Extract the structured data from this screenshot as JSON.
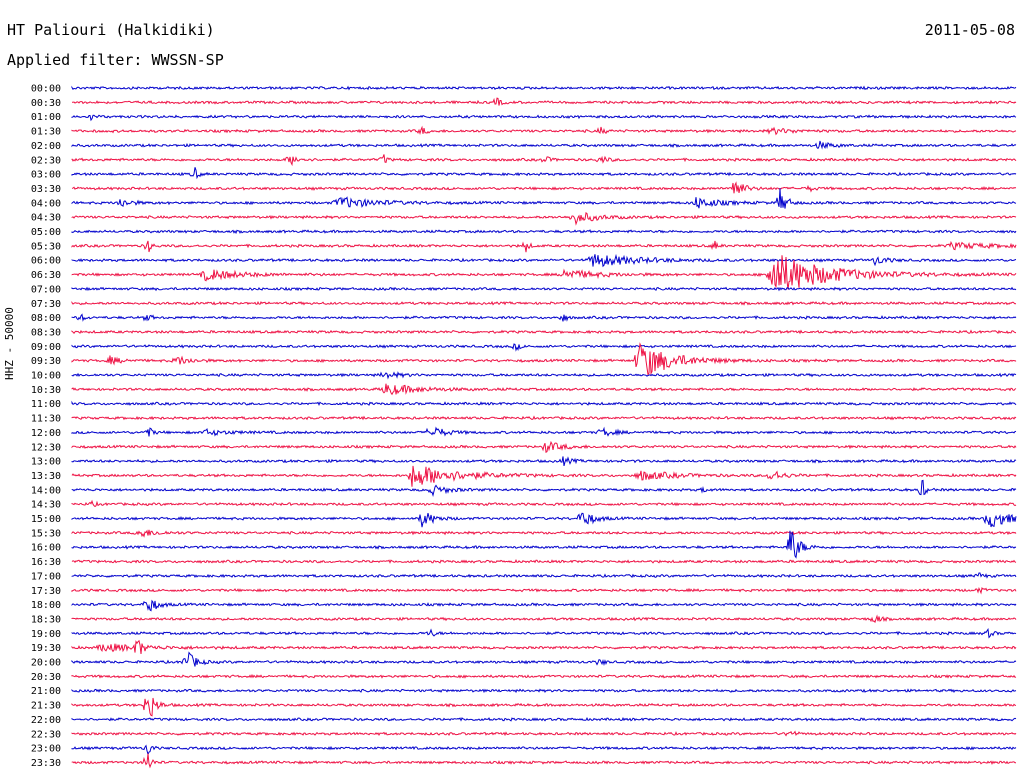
{
  "header": {
    "station": "HT Paliouri (Halkidiki)",
    "date": "2011-05-08",
    "filter_label": "Applied filter: WWSSN-SP"
  },
  "chart_data": {
    "type": "line",
    "ylabel": "HHZ - 50000",
    "colors": [
      "#0000cc",
      "#ee1144"
    ],
    "rows": [
      {
        "time": "00:00",
        "color": "#0000cc",
        "events": []
      },
      {
        "time": "00:30",
        "color": "#ee1144",
        "events": [
          {
            "t": 0.45,
            "a": 5,
            "w": 0.004
          }
        ]
      },
      {
        "time": "01:00",
        "color": "#0000cc",
        "events": [
          {
            "t": 0.02,
            "a": 3,
            "w": 0.004
          }
        ]
      },
      {
        "time": "01:30",
        "color": "#ee1144",
        "events": [
          {
            "t": 0.37,
            "a": 5,
            "w": 0.004
          },
          {
            "t": 0.56,
            "a": 4,
            "w": 0.004
          },
          {
            "t": 0.74,
            "a": 3,
            "w": 0.02
          }
        ]
      },
      {
        "time": "02:00",
        "color": "#0000cc",
        "events": [
          {
            "t": 0.79,
            "a": 4,
            "w": 0.012
          }
        ]
      },
      {
        "time": "02:30",
        "color": "#ee1144",
        "events": [
          {
            "t": 0.23,
            "a": 6,
            "w": 0.008
          },
          {
            "t": 0.33,
            "a": 6,
            "w": 0.003
          },
          {
            "t": 0.5,
            "a": 4,
            "w": 0.005
          },
          {
            "t": 0.56,
            "a": 4,
            "w": 0.006
          }
        ]
      },
      {
        "time": "03:00",
        "color": "#0000cc",
        "events": [
          {
            "t": 0.13,
            "a": 7,
            "w": 0.003
          }
        ]
      },
      {
        "time": "03:30",
        "color": "#ee1144",
        "events": [
          {
            "t": 0.7,
            "a": 13,
            "w": 0.008
          },
          {
            "t": 0.78,
            "a": 4,
            "w": 0.004
          }
        ]
      },
      {
        "time": "04:00",
        "color": "#0000cc",
        "events": [
          {
            "t": 0.05,
            "a": 5,
            "w": 0.01
          },
          {
            "t": 0.28,
            "a": 6,
            "w": 0.035
          },
          {
            "t": 0.66,
            "a": 6,
            "w": 0.02
          },
          {
            "t": 0.75,
            "a": 14,
            "w": 0.006
          }
        ]
      },
      {
        "time": "04:30",
        "color": "#ee1144",
        "events": [
          {
            "t": 0.53,
            "a": 7,
            "w": 0.02
          }
        ]
      },
      {
        "time": "05:00",
        "color": "#0000cc",
        "events": []
      },
      {
        "time": "05:30",
        "color": "#ee1144",
        "events": [
          {
            "t": 0.08,
            "a": 9,
            "w": 0.003
          },
          {
            "t": 0.48,
            "a": 8,
            "w": 0.003
          },
          {
            "t": 0.68,
            "a": 6,
            "w": 0.003
          },
          {
            "t": 0.93,
            "a": 3,
            "w": 0.04
          }
        ]
      },
      {
        "time": "06:00",
        "color": "#0000cc",
        "events": [
          {
            "t": 0.55,
            "a": 7,
            "w": 0.04
          },
          {
            "t": 0.85,
            "a": 5,
            "w": 0.01
          }
        ]
      },
      {
        "time": "06:30",
        "color": "#ee1144",
        "events": [
          {
            "t": 0.14,
            "a": 6,
            "w": 0.03
          },
          {
            "t": 0.52,
            "a": 5,
            "w": 0.03
          },
          {
            "t": 0.74,
            "a": 24,
            "w": 0.05
          }
        ]
      },
      {
        "time": "07:00",
        "color": "#0000cc",
        "events": []
      },
      {
        "time": "07:30",
        "color": "#ee1144",
        "events": []
      },
      {
        "time": "08:00",
        "color": "#0000cc",
        "events": [
          {
            "t": 0.01,
            "a": 4,
            "w": 0.003
          },
          {
            "t": 0.08,
            "a": 5,
            "w": 0.003
          },
          {
            "t": 0.52,
            "a": 6,
            "w": 0.003
          }
        ]
      },
      {
        "time": "08:30",
        "color": "#ee1144",
        "events": []
      },
      {
        "time": "09:00",
        "color": "#0000cc",
        "events": [
          {
            "t": 0.47,
            "a": 5,
            "w": 0.003
          }
        ]
      },
      {
        "time": "09:30",
        "color": "#ee1144",
        "events": [
          {
            "t": 0.04,
            "a": 4,
            "w": 0.01
          },
          {
            "t": 0.11,
            "a": 5,
            "w": 0.012
          },
          {
            "t": 0.6,
            "a": 20,
            "w": 0.03
          }
        ]
      },
      {
        "time": "10:00",
        "color": "#0000cc",
        "events": [
          {
            "t": 0.33,
            "a": 4,
            "w": 0.012
          }
        ]
      },
      {
        "time": "10:30",
        "color": "#ee1144",
        "events": [
          {
            "t": 0.33,
            "a": 6,
            "w": 0.03
          }
        ]
      },
      {
        "time": "11:00",
        "color": "#0000cc",
        "events": []
      },
      {
        "time": "11:30",
        "color": "#ee1144",
        "events": []
      },
      {
        "time": "12:00",
        "color": "#0000cc",
        "events": [
          {
            "t": 0.08,
            "a": 7,
            "w": 0.004
          },
          {
            "t": 0.14,
            "a": 3,
            "w": 0.02
          },
          {
            "t": 0.38,
            "a": 7,
            "w": 0.012
          },
          {
            "t": 0.56,
            "a": 5,
            "w": 0.01
          }
        ]
      },
      {
        "time": "12:30",
        "color": "#ee1144",
        "events": [
          {
            "t": 0.5,
            "a": 6,
            "w": 0.015
          }
        ]
      },
      {
        "time": "13:00",
        "color": "#0000cc",
        "events": [
          {
            "t": 0.52,
            "a": 4,
            "w": 0.008
          }
        ]
      },
      {
        "time": "13:30",
        "color": "#ee1144",
        "events": [
          {
            "t": 0.36,
            "a": 12,
            "w": 0.04
          },
          {
            "t": 0.6,
            "a": 5,
            "w": 0.03
          },
          {
            "t": 0.74,
            "a": 7,
            "w": 0.01
          }
        ]
      },
      {
        "time": "14:00",
        "color": "#0000cc",
        "events": [
          {
            "t": 0.38,
            "a": 5,
            "w": 0.015
          },
          {
            "t": 0.67,
            "a": 4,
            "w": 0.003
          },
          {
            "t": 0.9,
            "a": 14,
            "w": 0.003
          }
        ]
      },
      {
        "time": "14:30",
        "color": "#ee1144",
        "events": [
          {
            "t": 0.02,
            "a": 3,
            "w": 0.004
          }
        ]
      },
      {
        "time": "15:00",
        "color": "#0000cc",
        "events": [
          {
            "t": 0.37,
            "a": 10,
            "w": 0.01
          },
          {
            "t": 0.54,
            "a": 10,
            "w": 0.01
          },
          {
            "t": 0.97,
            "a": 10,
            "w": 0.02
          }
        ]
      },
      {
        "time": "15:30",
        "color": "#ee1144",
        "events": [
          {
            "t": 0.07,
            "a": 5,
            "w": 0.015
          }
        ]
      },
      {
        "time": "16:00",
        "color": "#0000cc",
        "events": [
          {
            "t": 0.76,
            "a": 24,
            "w": 0.008
          }
        ]
      },
      {
        "time": "16:30",
        "color": "#ee1144",
        "events": []
      },
      {
        "time": "17:00",
        "color": "#0000cc",
        "events": [
          {
            "t": 0.96,
            "a": 3,
            "w": 0.005
          }
        ]
      },
      {
        "time": "17:30",
        "color": "#ee1144",
        "events": [
          {
            "t": 0.96,
            "a": 3,
            "w": 0.005
          }
        ]
      },
      {
        "time": "18:00",
        "color": "#0000cc",
        "events": [
          {
            "t": 0.08,
            "a": 10,
            "w": 0.008
          }
        ]
      },
      {
        "time": "18:30",
        "color": "#ee1144",
        "events": [
          {
            "t": 0.85,
            "a": 7,
            "w": 0.004
          }
        ]
      },
      {
        "time": "19:00",
        "color": "#0000cc",
        "events": [
          {
            "t": 0.38,
            "a": 4,
            "w": 0.004
          },
          {
            "t": 0.97,
            "a": 5,
            "w": 0.004
          }
        ]
      },
      {
        "time": "19:30",
        "color": "#ee1144",
        "events": [
          {
            "t": 0.03,
            "a": 4,
            "w": 0.04
          },
          {
            "t": 0.07,
            "a": 15,
            "w": 0.003
          }
        ]
      },
      {
        "time": "20:00",
        "color": "#0000cc",
        "events": [
          {
            "t": 0.12,
            "a": 14,
            "w": 0.008
          },
          {
            "t": 0.56,
            "a": 5,
            "w": 0.003
          }
        ]
      },
      {
        "time": "20:30",
        "color": "#ee1144",
        "events": []
      },
      {
        "time": "21:00",
        "color": "#0000cc",
        "events": []
      },
      {
        "time": "21:30",
        "color": "#ee1144",
        "events": [
          {
            "t": 0.08,
            "a": 22,
            "w": 0.006
          }
        ]
      },
      {
        "time": "22:00",
        "color": "#0000cc",
        "events": []
      },
      {
        "time": "22:30",
        "color": "#ee1144",
        "events": [
          {
            "t": 0.76,
            "a": 5,
            "w": 0.004
          }
        ]
      },
      {
        "time": "23:00",
        "color": "#0000cc",
        "events": [
          {
            "t": 0.08,
            "a": 10,
            "w": 0.003
          }
        ]
      },
      {
        "time": "23:30",
        "color": "#ee1144",
        "events": [
          {
            "t": 0.08,
            "a": 14,
            "w": 0.003
          }
        ]
      }
    ]
  }
}
